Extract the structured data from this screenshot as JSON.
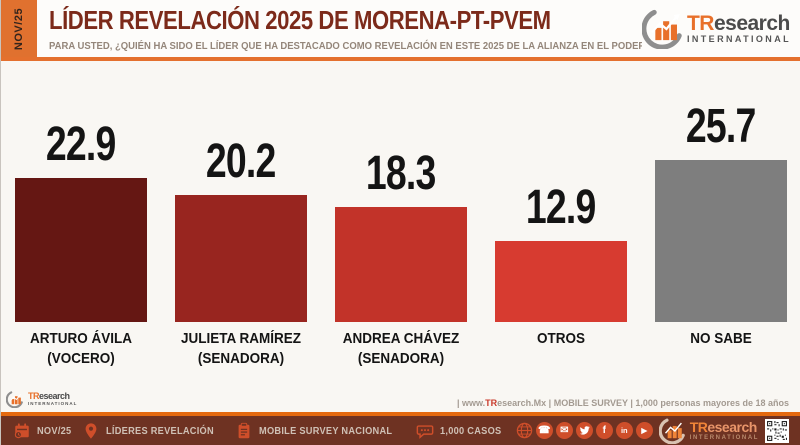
{
  "header": {
    "date_badge": "NOV/25",
    "title": "LÍDER REVELACIÓN 2025 DE MORENA-PT-PVEM",
    "subtitle": "PARA USTED, ¿QUIÉN HA SIDO EL LÍDER QUE HA DESTACADO COMO REVELACIÓN EN ESTE 2025 DE LA ALIANZA EN EL PODER (MORENA-PT-PVEM)?",
    "logo": {
      "brand_tr": "TR",
      "brand_rest": "esearch",
      "brand_sub": "INTERNATIONAL"
    }
  },
  "chart_data": {
    "type": "bar",
    "title": "LÍDER REVELACIÓN 2025 DE MORENA-PT-PVEM",
    "categories": [
      "ARTURO ÁVILA (VOCERO)",
      "JULIETA RAMÍREZ (SENADORA)",
      "ANDREA CHÁVEZ (SENADORA)",
      "OTROS",
      "NO SABE"
    ],
    "values": [
      22.9,
      20.2,
      18.3,
      12.9,
      25.7
    ],
    "bars": [
      {
        "name": "ARTURO ÁVILA",
        "role": "(VOCERO)",
        "value": 22.9,
        "color": "#651713"
      },
      {
        "name": "JULIETA RAMÍREZ",
        "role": "(SENADORA)",
        "value": 20.2,
        "color": "#98251f"
      },
      {
        "name": "ANDREA CHÁVEZ",
        "role": "(SENADORA)",
        "value": 18.3,
        "color": "#c23329"
      },
      {
        "name": "OTROS",
        "role": "",
        "value": 12.9,
        "color": "#d73b30"
      },
      {
        "name": "NO SABE",
        "role": "",
        "value": 25.7,
        "color": "#7e7e7e"
      }
    ],
    "ylim": [
      0,
      30
    ],
    "grid": false,
    "legend": false,
    "value_labels": "above bars",
    "axes": "hidden"
  },
  "source": {
    "prefix": "| www.",
    "brand_tr": "TR",
    "rest": "esearch.Mx | MOBILE SURVEY | 1,000 personas mayores de 18 años"
  },
  "footer": {
    "items": [
      {
        "icon": "calendar-icon",
        "label": "NOV/25"
      },
      {
        "icon": "location-pin-icon",
        "label": "LÍDERES REVELACIÓN"
      },
      {
        "icon": "survey-clipboard-icon",
        "label": "MOBILE SURVEY NACIONAL"
      },
      {
        "icon": "speech-bubble-icon",
        "label": "1,000 CASOS"
      }
    ],
    "socials": [
      "globe-icon",
      "phone-icon",
      "email-icon",
      "twitter-icon",
      "facebook-icon",
      "linkedin-icon",
      "youtube-icon"
    ],
    "qr": "qr-code"
  },
  "icons": {
    "phone_glyph": "☎",
    "email_glyph": "✉",
    "facebook_glyph": "f",
    "linkedin_glyph": "in",
    "youtube_glyph": "▶"
  },
  "colors": {
    "accent_orange": "#e4702e",
    "title_red": "#7c2a1a",
    "footer_bg": "#6e3222",
    "footer_icon": "#cf4e2a",
    "no_sabe_gray": "#7e7e7e"
  }
}
